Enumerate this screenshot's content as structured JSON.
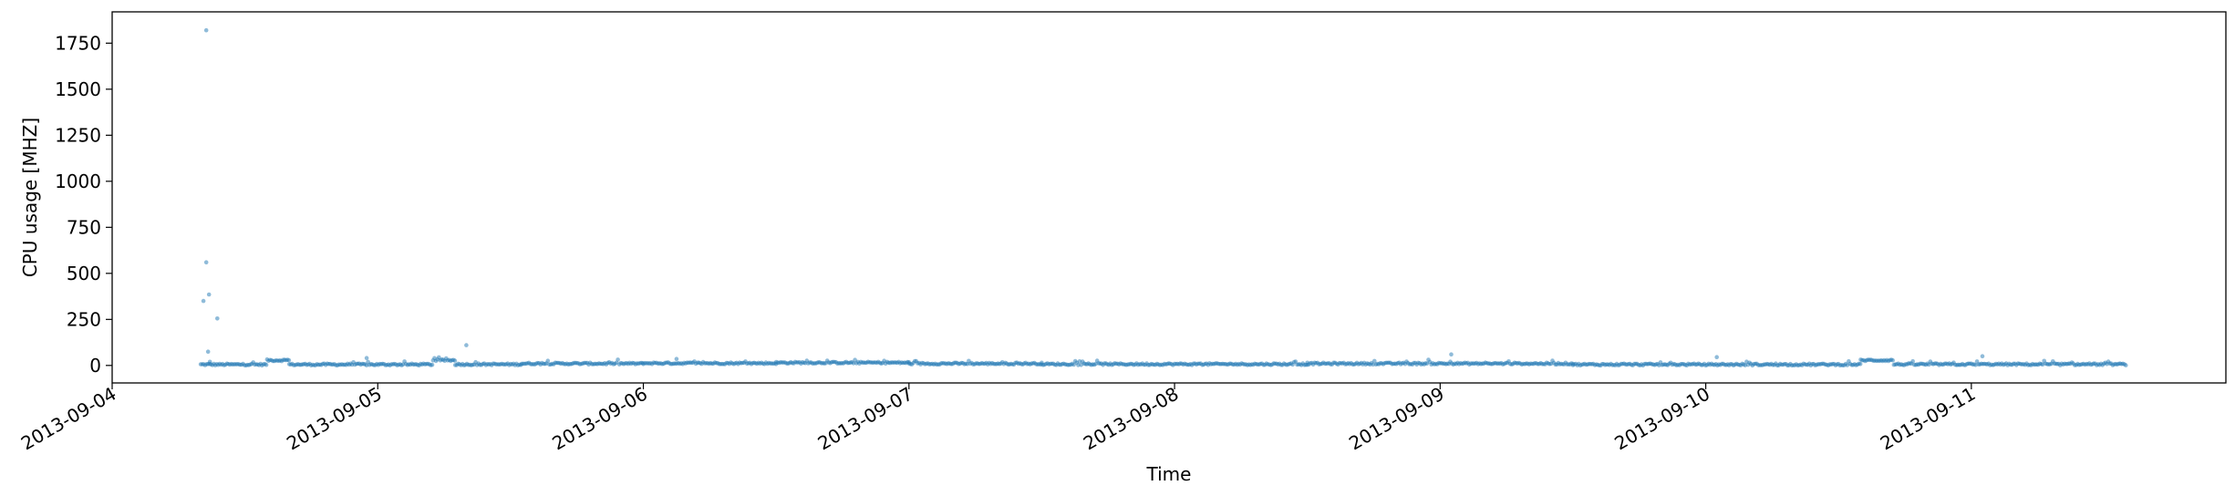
{
  "chart_data": {
    "type": "scatter",
    "title": "",
    "xlabel": "Time",
    "ylabel": "CPU usage [MHZ]",
    "x_axis_type": "date",
    "xlim": [
      "2013-09-04T00:00",
      "2013-09-11T23:00"
    ],
    "ylim": [
      -95,
      1920
    ],
    "x_ticks": [
      "2013-09-04",
      "2013-09-05",
      "2013-09-06",
      "2013-09-07",
      "2013-09-08",
      "2013-09-09",
      "2013-09-10",
      "2013-09-11"
    ],
    "y_ticks": [
      0,
      250,
      500,
      750,
      1000,
      1250,
      1500,
      1750
    ],
    "grid": false,
    "legend": "none",
    "series": [
      {
        "color": "#1f77b4",
        "alpha": 0.5,
        "baseline_segments": [
          {
            "start": "2013-09-04T08:00",
            "end": "2013-09-04T14:00",
            "value": 5
          },
          {
            "start": "2013-09-04T14:00",
            "end": "2013-09-04T16:00",
            "value": 28
          },
          {
            "start": "2013-09-04T16:00",
            "end": "2013-09-05T05:00",
            "value": 5
          },
          {
            "start": "2013-09-05T05:00",
            "end": "2013-09-05T07:00",
            "value": 28
          },
          {
            "start": "2013-09-05T07:00",
            "end": "2013-09-05T13:00",
            "value": 6
          },
          {
            "start": "2013-09-05T13:00",
            "end": "2013-09-06T00:00",
            "value": 10
          },
          {
            "start": "2013-09-06T00:00",
            "end": "2013-09-06T12:00",
            "value": 12
          },
          {
            "start": "2013-09-06T12:00",
            "end": "2013-09-07T00:00",
            "value": 15
          },
          {
            "start": "2013-09-07T00:00",
            "end": "2013-09-07T12:00",
            "value": 10
          },
          {
            "start": "2013-09-07T12:00",
            "end": "2013-09-08T12:00",
            "value": 7
          },
          {
            "start": "2013-09-08T12:00",
            "end": "2013-09-09T12:00",
            "value": 10
          },
          {
            "start": "2013-09-09T12:00",
            "end": "2013-09-10T14:00",
            "value": 5
          },
          {
            "start": "2013-09-10T14:00",
            "end": "2013-09-10T17:00",
            "value": 28
          },
          {
            "start": "2013-09-10T17:00",
            "end": "2013-09-11T14:00",
            "value": 6
          }
        ],
        "outliers": [
          {
            "x": "2013-09-04T08:30",
            "y": 1820
          },
          {
            "x": "2013-09-04T08:30",
            "y": 560
          },
          {
            "x": "2013-09-04T08:45",
            "y": 385
          },
          {
            "x": "2013-09-04T08:15",
            "y": 350
          },
          {
            "x": "2013-09-04T09:30",
            "y": 255
          },
          {
            "x": "2013-09-04T08:40",
            "y": 75
          },
          {
            "x": "2013-09-04T08:50",
            "y": 20
          },
          {
            "x": "2013-09-05T08:00",
            "y": 110
          },
          {
            "x": "2013-09-04T23:00",
            "y": 40
          },
          {
            "x": "2013-09-06T03:00",
            "y": 35
          },
          {
            "x": "2013-09-09T01:00",
            "y": 60
          },
          {
            "x": "2013-09-10T01:00",
            "y": 45
          },
          {
            "x": "2013-09-11T01:00",
            "y": 50
          }
        ]
      }
    ]
  }
}
